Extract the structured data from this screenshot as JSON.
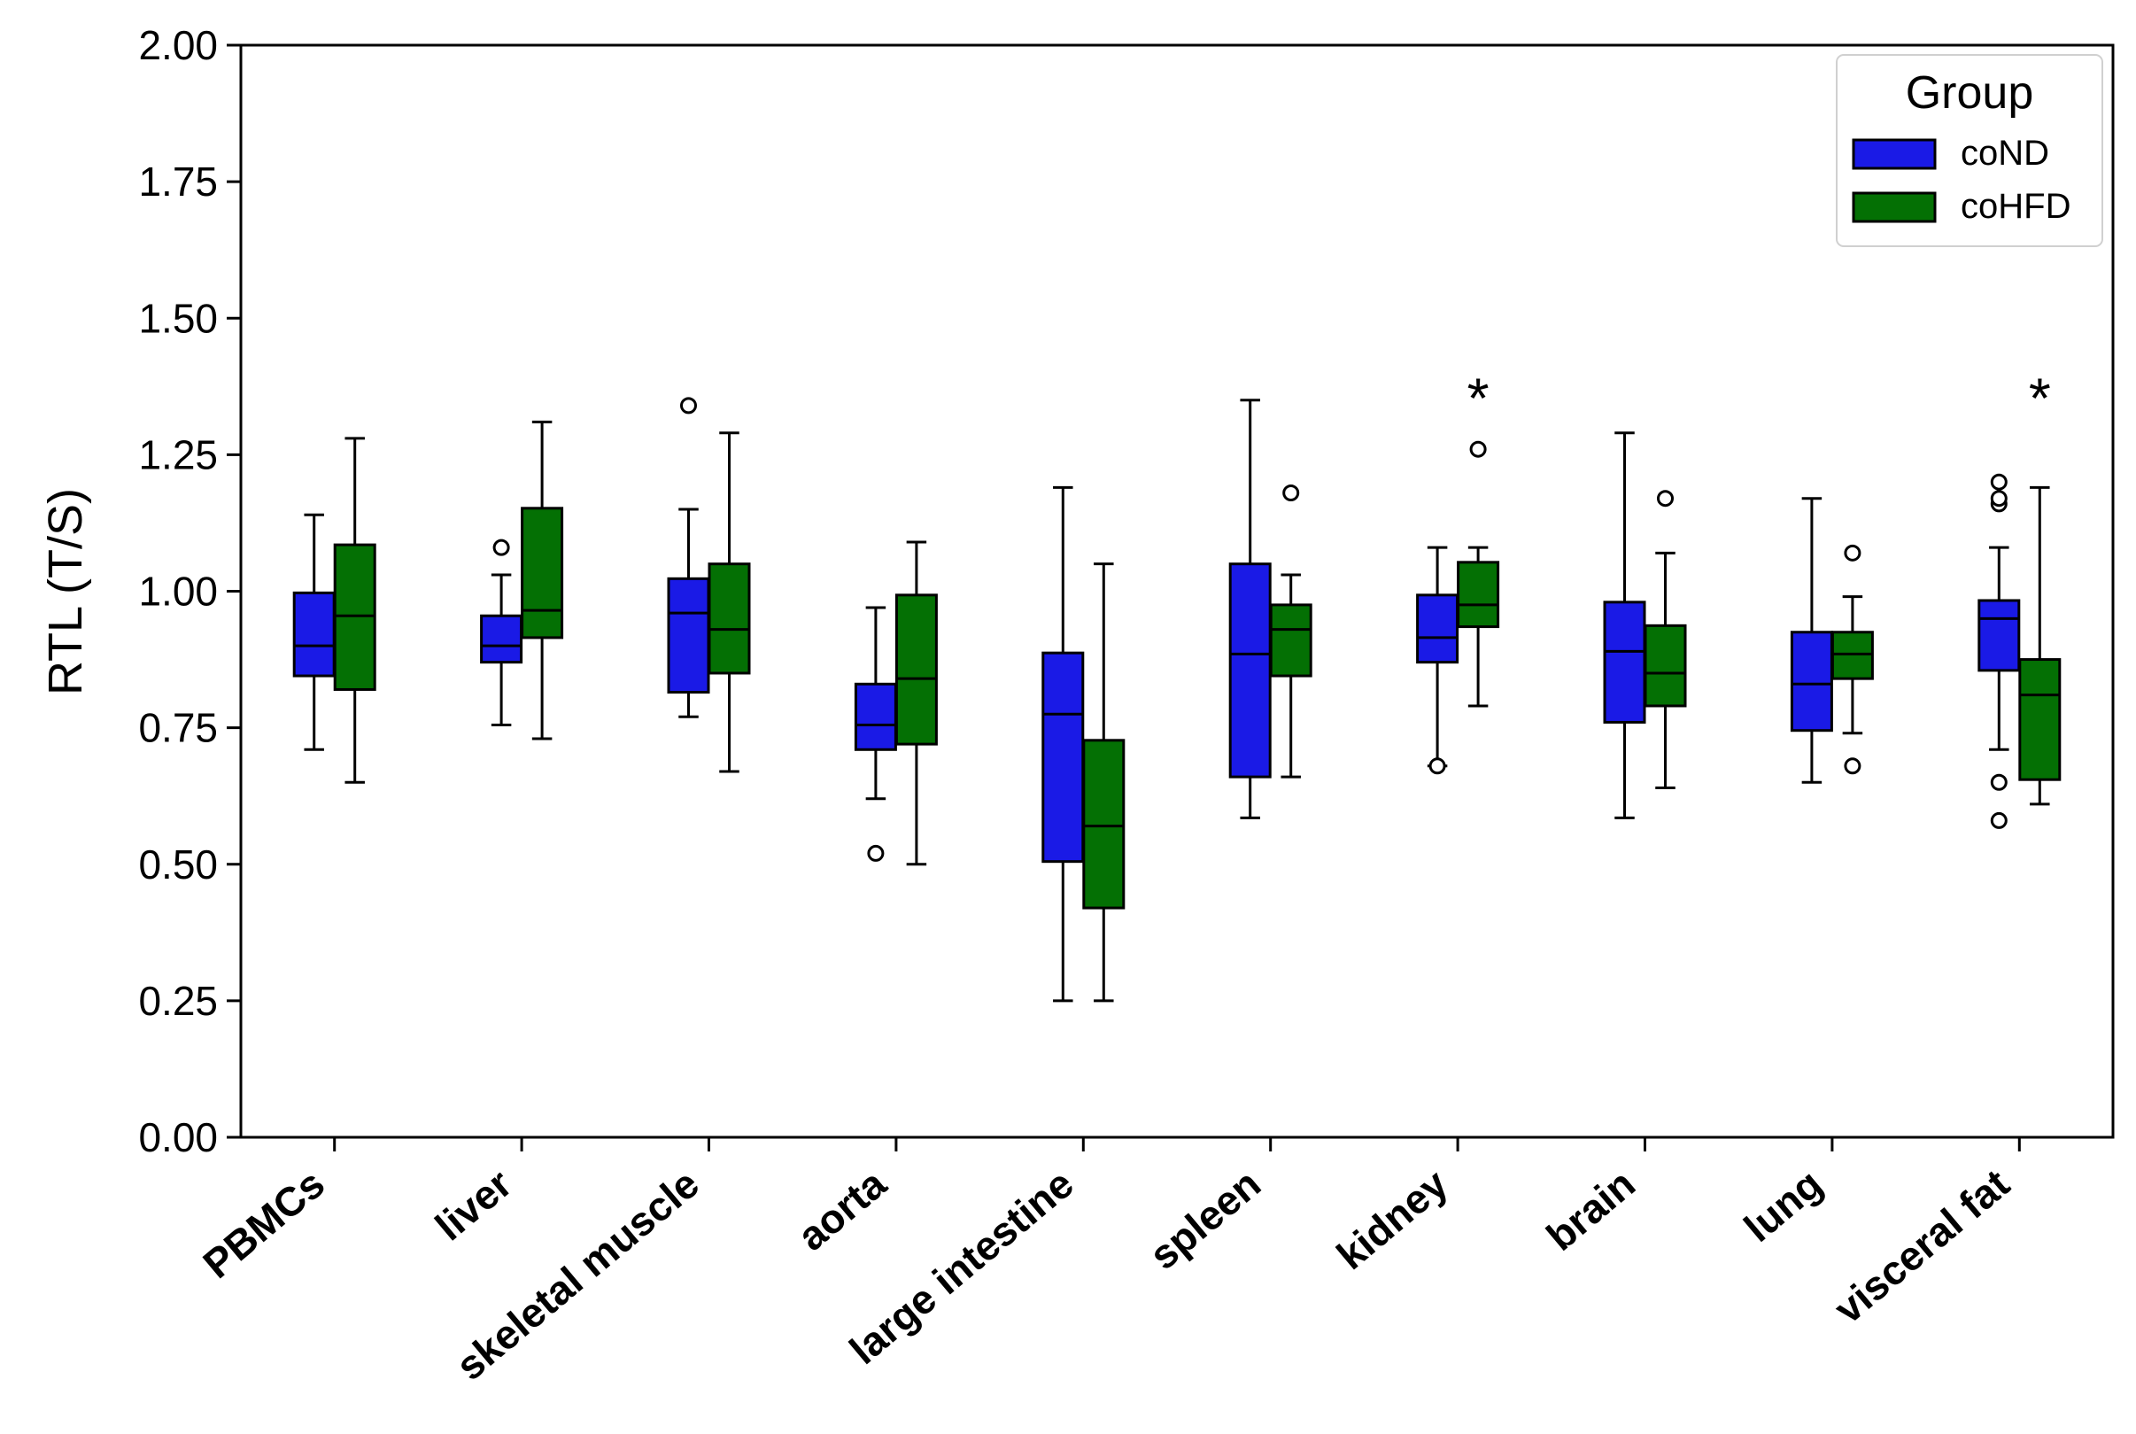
{
  "chart_data": {
    "type": "boxplot",
    "ylabel": "RTL (T/S)",
    "xlabel": "",
    "ylim": [
      0,
      2
    ],
    "yticks": [
      "0.00",
      "0.25",
      "0.50",
      "0.75",
      "1.00",
      "1.25",
      "1.50",
      "1.75",
      "2.00"
    ],
    "categories": [
      "PBMCs",
      "liver",
      "skeletal muscle",
      "aorta",
      "large intestine",
      "spleen",
      "kidney",
      "brain",
      "lung",
      "visceral fat"
    ],
    "legend": {
      "title": "Group",
      "position": "top-right"
    },
    "series": [
      {
        "name": "coND",
        "color": "#1a1ae6",
        "boxes": [
          {
            "whisker_low": 0.71,
            "q1": 0.845,
            "median": 0.9,
            "q3": 0.997,
            "whisker_high": 1.14,
            "outliers": []
          },
          {
            "whisker_low": 0.755,
            "q1": 0.87,
            "median": 0.9,
            "q3": 0.955,
            "whisker_high": 1.03,
            "outliers": [
              1.08
            ]
          },
          {
            "whisker_low": 0.77,
            "q1": 0.815,
            "median": 0.96,
            "q3": 1.023,
            "whisker_high": 1.15,
            "outliers": [
              1.34
            ]
          },
          {
            "whisker_low": 0.62,
            "q1": 0.71,
            "median": 0.755,
            "q3": 0.83,
            "whisker_high": 0.97,
            "outliers": [
              0.52
            ]
          },
          {
            "whisker_low": 0.25,
            "q1": 0.505,
            "median": 0.775,
            "q3": 0.887,
            "whisker_high": 1.19,
            "outliers": []
          },
          {
            "whisker_low": 0.585,
            "q1": 0.66,
            "median": 0.885,
            "q3": 1.05,
            "whisker_high": 1.35,
            "outliers": []
          },
          {
            "whisker_low": 0.68,
            "q1": 0.87,
            "median": 0.915,
            "q3": 0.993,
            "whisker_high": 1.08,
            "outliers": [
              0.68
            ]
          },
          {
            "whisker_low": 0.585,
            "q1": 0.76,
            "median": 0.89,
            "q3": 0.98,
            "whisker_high": 1.29,
            "outliers": []
          },
          {
            "whisker_low": 0.65,
            "q1": 0.745,
            "median": 0.83,
            "q3": 0.925,
            "whisker_high": 1.17,
            "outliers": []
          },
          {
            "whisker_low": 0.71,
            "q1": 0.855,
            "median": 0.95,
            "q3": 0.983,
            "whisker_high": 1.08,
            "outliers": [
              0.58,
              0.65,
              1.16,
              1.17,
              1.2
            ]
          }
        ]
      },
      {
        "name": "coHFD",
        "color": "#047004",
        "boxes": [
          {
            "whisker_low": 0.65,
            "q1": 0.82,
            "median": 0.955,
            "q3": 1.085,
            "whisker_high": 1.28,
            "outliers": []
          },
          {
            "whisker_low": 0.73,
            "q1": 0.915,
            "median": 0.965,
            "q3": 1.152,
            "whisker_high": 1.31,
            "outliers": []
          },
          {
            "whisker_low": 0.67,
            "q1": 0.85,
            "median": 0.93,
            "q3": 1.05,
            "whisker_high": 1.29,
            "outliers": []
          },
          {
            "whisker_low": 0.5,
            "q1": 0.72,
            "median": 0.84,
            "q3": 0.993,
            "whisker_high": 1.09,
            "outliers": []
          },
          {
            "whisker_low": 0.25,
            "q1": 0.42,
            "median": 0.57,
            "q3": 0.727,
            "whisker_high": 1.05,
            "outliers": []
          },
          {
            "whisker_low": 0.66,
            "q1": 0.845,
            "median": 0.93,
            "q3": 0.975,
            "whisker_high": 1.03,
            "outliers": [
              1.18
            ]
          },
          {
            "whisker_low": 0.79,
            "q1": 0.935,
            "median": 0.975,
            "q3": 1.053,
            "whisker_high": 1.08,
            "outliers": [
              1.26
            ]
          },
          {
            "whisker_low": 0.64,
            "q1": 0.79,
            "median": 0.85,
            "q3": 0.937,
            "whisker_high": 1.07,
            "outliers": [
              1.17
            ]
          },
          {
            "whisker_low": 0.74,
            "q1": 0.84,
            "median": 0.885,
            "q3": 0.925,
            "whisker_high": 0.99,
            "outliers": [
              0.68,
              1.07
            ]
          },
          {
            "whisker_low": 0.61,
            "q1": 0.655,
            "median": 0.81,
            "q3": 0.875,
            "whisker_high": 1.19,
            "outliers": []
          }
        ]
      }
    ],
    "annotations": [
      {
        "category": "kidney",
        "text": "*",
        "y": 1.37
      },
      {
        "category": "visceral fat",
        "text": "*",
        "y": 1.37
      }
    ],
    "grid": false
  }
}
